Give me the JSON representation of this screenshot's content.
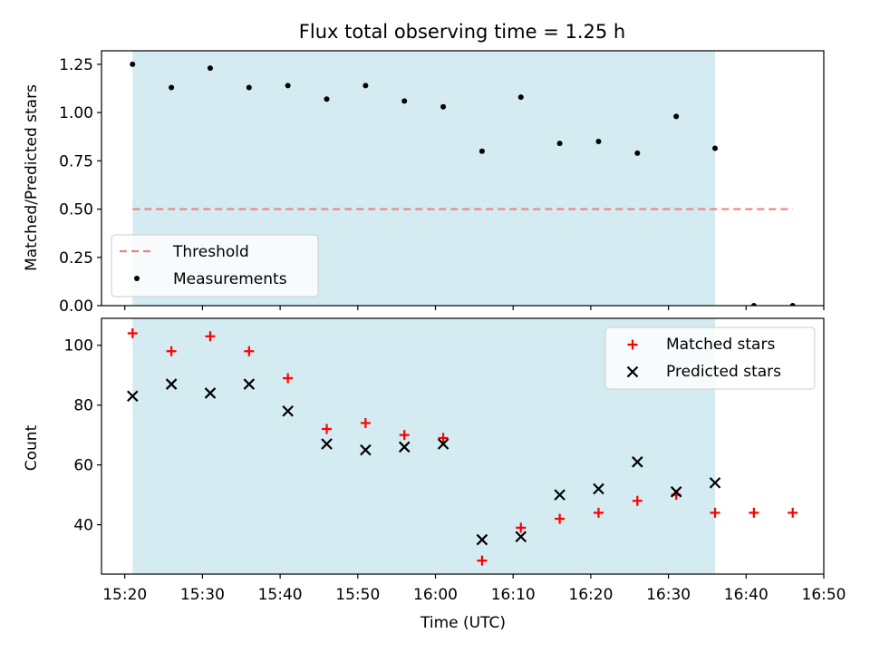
{
  "chart_data": [
    {
      "type": "scatter",
      "title": "Flux total observing time = 1.25 h",
      "xlabel": "",
      "ylabel": "Matched/Predicted stars",
      "ylim": [
        0,
        1.32
      ],
      "yticks": [
        0.0,
        0.25,
        0.5,
        0.75,
        1.0,
        1.25
      ],
      "ytick_labels": [
        "0.00",
        "0.25",
        "0.50",
        "0.75",
        "1.00",
        "1.25"
      ],
      "xlim": [
        "15:17",
        "16:50"
      ],
      "shaded_span": [
        "15:21",
        "16:36"
      ],
      "shaded_color": "#d4ebf1",
      "legend": {
        "placement": "lower-left",
        "entries": [
          "Threshold",
          "Measurements"
        ]
      },
      "threshold": {
        "name": "Threshold",
        "x": [
          "15:21",
          "16:46"
        ],
        "y": 0.5,
        "color": "#f08080",
        "style": "dashed"
      },
      "series": [
        {
          "name": "Measurements",
          "marker": "dot",
          "color": "#000000",
          "x": [
            "15:21",
            "15:26",
            "15:31",
            "15:36",
            "15:41",
            "15:46",
            "15:51",
            "15:56",
            "16:01",
            "16:06",
            "16:11",
            "16:16",
            "16:21",
            "16:26",
            "16:31",
            "16:36",
            "16:41",
            "16:46"
          ],
          "y": [
            1.25,
            1.13,
            1.23,
            1.13,
            1.14,
            1.07,
            1.14,
            1.06,
            1.03,
            0.8,
            1.08,
            0.84,
            0.85,
            0.79,
            0.98,
            0.815,
            0.0,
            0.0
          ]
        }
      ]
    },
    {
      "type": "scatter",
      "title": "",
      "xlabel": "Time (UTC)",
      "ylabel": "Count",
      "ylim": [
        23.5,
        109
      ],
      "yticks": [
        40,
        60,
        80,
        100
      ],
      "ytick_labels": [
        "40",
        "60",
        "80",
        "100"
      ],
      "xlim": [
        "15:17",
        "16:50"
      ],
      "xticks": [
        "15:20",
        "15:30",
        "15:40",
        "15:50",
        "16:00",
        "16:10",
        "16:20",
        "16:30",
        "16:40",
        "16:50"
      ],
      "xtick_labels": [
        "15:20",
        "15:30",
        "15:40",
        "15:50",
        "16:00",
        "16:10",
        "16:20",
        "16:30",
        "16:40",
        "16:50"
      ],
      "shaded_span": [
        "15:21",
        "16:36"
      ],
      "shaded_color": "#d4ebf1",
      "legend": {
        "placement": "top-right",
        "entries": [
          "Matched stars",
          "Predicted stars"
        ]
      },
      "series": [
        {
          "name": "Matched stars",
          "marker": "plus",
          "color": "#ff0000",
          "x": [
            "15:21",
            "15:26",
            "15:31",
            "15:36",
            "15:41",
            "15:46",
            "15:51",
            "15:56",
            "16:01",
            "16:06",
            "16:11",
            "16:16",
            "16:21",
            "16:26",
            "16:31",
            "16:36",
            "16:41",
            "16:46"
          ],
          "y": [
            104,
            98,
            103,
            98,
            89,
            72,
            74,
            70,
            69,
            28,
            39,
            42,
            44,
            48,
            50,
            44,
            44,
            44
          ]
        },
        {
          "name": "Predicted stars",
          "marker": "x",
          "color": "#000000",
          "x": [
            "15:21",
            "15:26",
            "15:31",
            "15:36",
            "15:41",
            "15:46",
            "15:51",
            "15:56",
            "16:01",
            "16:06",
            "16:11",
            "16:16",
            "16:21",
            "16:26",
            "16:31",
            "16:36"
          ],
          "y": [
            83,
            87,
            84,
            87,
            78,
            67,
            65,
            66,
            67,
            35,
            36,
            50,
            52,
            61,
            51,
            54
          ]
        }
      ]
    }
  ]
}
